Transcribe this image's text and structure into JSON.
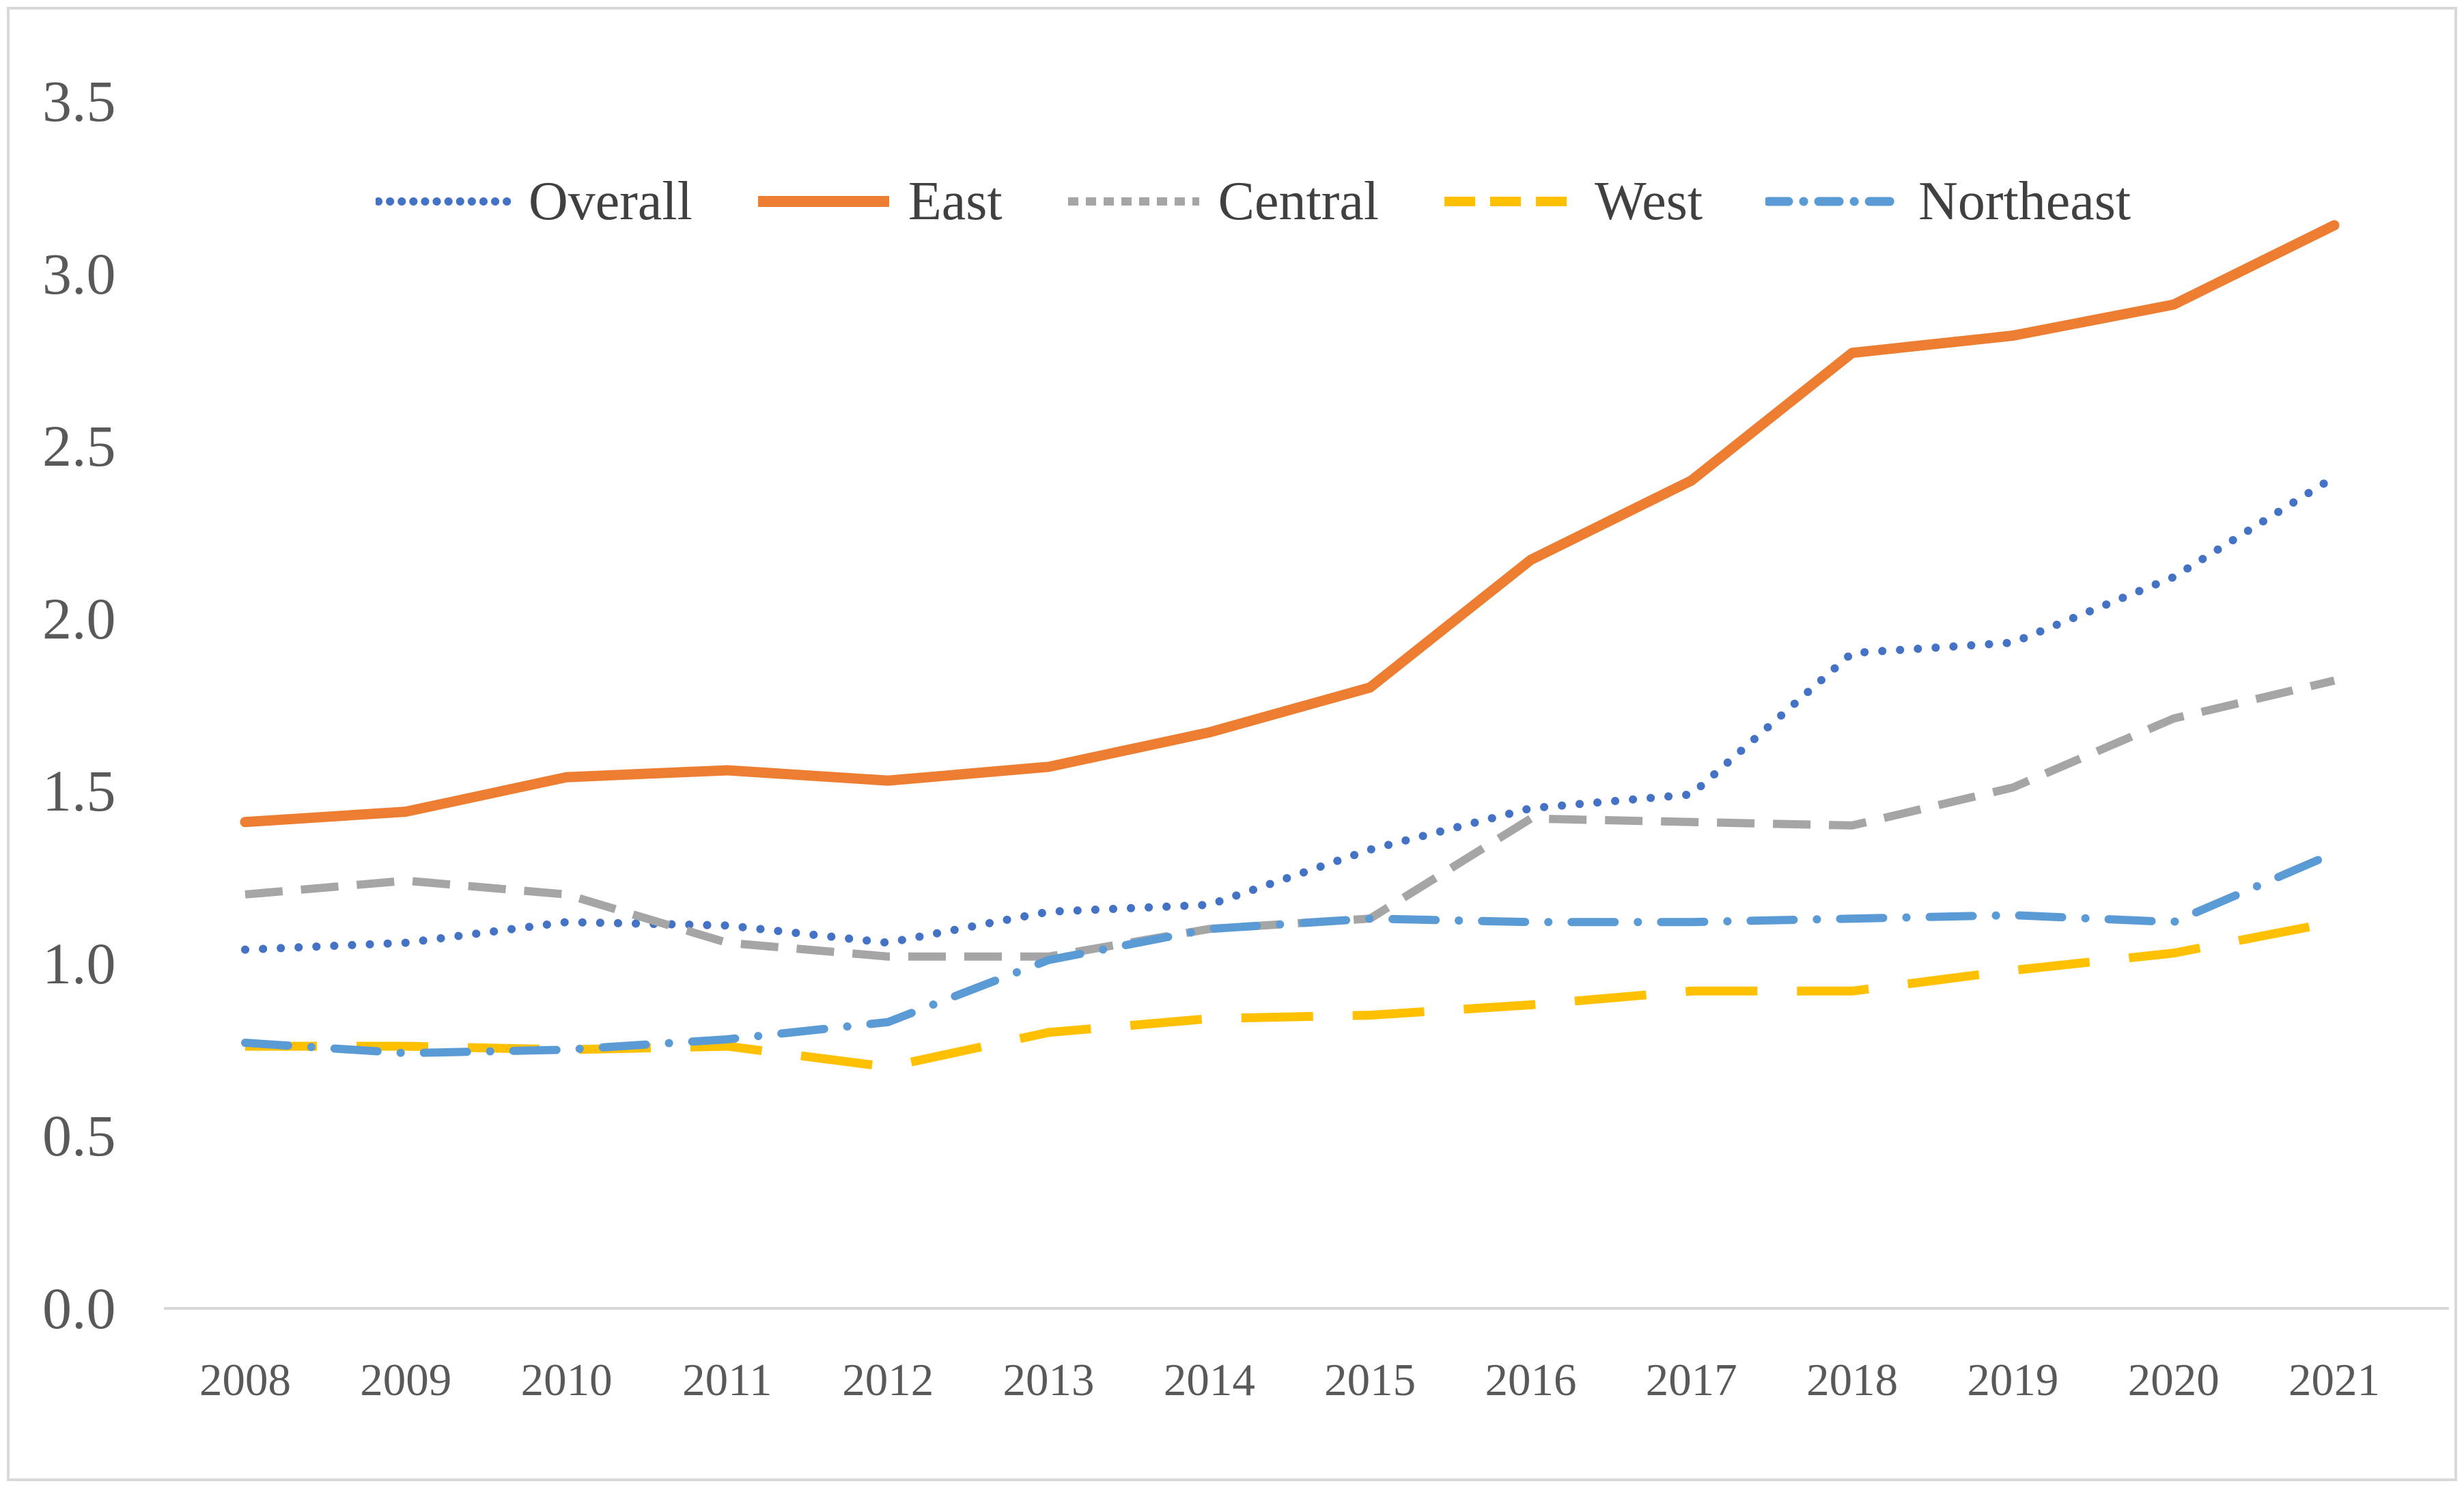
{
  "figure": {
    "background_color": "#ffffff",
    "border_color": "#d9d9d9"
  },
  "axes": {
    "tick_label_color": "#595959",
    "axis_line_color": "#d9d9d9"
  },
  "legend": {
    "position": "top",
    "label_color": "#404040"
  },
  "chart_data": {
    "type": "line",
    "x": [
      2008,
      2009,
      2010,
      2011,
      2012,
      2013,
      2014,
      2015,
      2016,
      2017,
      2018,
      2019,
      2020,
      2021
    ],
    "series": [
      {
        "name": "Overall",
        "color": "#4472C4",
        "line_style": "dotted",
        "values": [
          1.04,
          1.06,
          1.12,
          1.11,
          1.06,
          1.15,
          1.17,
          1.33,
          1.45,
          1.49,
          1.9,
          1.93,
          2.12,
          2.41
        ]
      },
      {
        "name": "East",
        "color": "#ED7D31",
        "line_style": "solid",
        "values": [
          1.41,
          1.44,
          1.54,
          1.56,
          1.53,
          1.57,
          1.67,
          1.8,
          2.17,
          2.4,
          2.77,
          2.82,
          2.91,
          3.14
        ]
      },
      {
        "name": "Central",
        "color": "#A5A5A5",
        "line_style": "dashed",
        "values": [
          1.2,
          1.24,
          1.2,
          1.06,
          1.02,
          1.02,
          1.1,
          1.13,
          1.42,
          1.41,
          1.4,
          1.51,
          1.71,
          1.82
        ]
      },
      {
        "name": "West",
        "color": "#FFC000",
        "line_style": "long-dash",
        "values": [
          0.76,
          0.76,
          0.75,
          0.76,
          0.7,
          0.8,
          0.84,
          0.85,
          0.88,
          0.92,
          0.92,
          0.98,
          1.03,
          1.12
        ]
      },
      {
        "name": "Northeast",
        "color": "#5B9BD5",
        "line_style": "dash-dot",
        "values": [
          0.77,
          0.74,
          0.75,
          0.78,
          0.83,
          1.01,
          1.1,
          1.13,
          1.12,
          1.12,
          1.13,
          1.14,
          1.12,
          1.32
        ]
      }
    ],
    "ylim": [
      0.0,
      3.5
    ],
    "ytick_step": 0.5,
    "ytick_decimals": 1,
    "grid": false,
    "legend_position": "top"
  }
}
